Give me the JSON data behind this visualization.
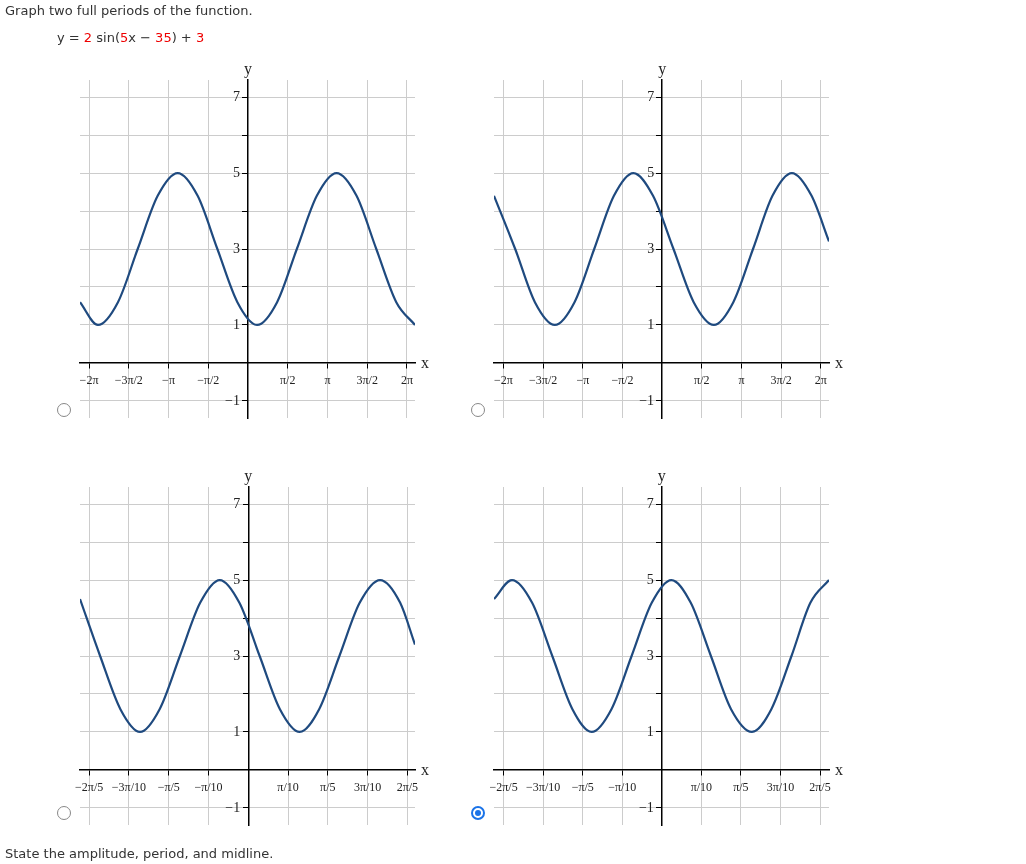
{
  "chart_data": [
    {
      "type": "line",
      "title": "Graph two full periods of the function.",
      "subtitle": "y = 2 sin(5x − 35) + 3",
      "xlabel": "x",
      "ylabel": "y",
      "grid": true,
      "x": [
        -6.64,
        -5.93,
        -5.14,
        -4.36,
        -3.57,
        -2.78,
        -1.99,
        -1.21,
        -0.42,
        0.36,
        1.15,
        1.93,
        2.72,
        3.5,
        4.29,
        5.07,
        5.86,
        6.6
      ],
      "series": [
        {
          "color": "#1f4a7f",
          "values": [
            1.6,
            1,
            1.6,
            3,
            4.4,
            5,
            4.4,
            3,
            1.6,
            1,
            1.6,
            3,
            4.4,
            5,
            4.4,
            3,
            1.6,
            1
          ]
        }
      ],
      "xlim": [
        -6.64,
        6.6
      ],
      "ylim": [
        -1.45,
        7.45
      ],
      "xticks": [
        {
          "value": -6.2832,
          "label": "−2π"
        },
        {
          "value": -4.7124,
          "label": "−3π/2"
        },
        {
          "value": -3.1416,
          "label": "−π"
        },
        {
          "value": -1.5708,
          "label": "−π/2"
        },
        {
          "value": 1.5708,
          "label": "π/2"
        },
        {
          "value": 3.1416,
          "label": "π"
        },
        {
          "value": 4.7124,
          "label": "3π/2"
        },
        {
          "value": 6.2832,
          "label": "2π"
        }
      ],
      "yticks": [
        -1,
        {
          "value": 0,
          "label": null
        },
        1,
        {
          "value": 2,
          "label": null
        },
        3,
        {
          "value": 4,
          "label": null
        },
        5,
        {
          "value": 6,
          "label": null
        },
        7
      ]
    },
    {
      "type": "line",
      "xlabel": "x",
      "ylabel": "y",
      "grid": true,
      "x": [
        -6.66,
        -5.82,
        -5.04,
        -4.25,
        -3.47,
        -2.69,
        -1.91,
        -1.14,
        -0.36,
        0.45,
        1.25,
        2.05,
        2.82,
        3.6,
        4.37,
        5.14,
        5.92,
        6.61
      ],
      "series": [
        {
          "color": "#1f4a7f",
          "values": [
            4.4,
            3,
            1.6,
            1,
            1.6,
            3,
            4.4,
            5,
            4.4,
            3,
            1.6,
            1,
            1.6,
            3,
            4.4,
            5,
            4.4,
            3.2
          ]
        }
      ],
      "xlim": [
        -6.66,
        6.61
      ],
      "ylim": [
        -1.45,
        7.45
      ],
      "xticks": [
        {
          "value": -6.2832,
          "label": "−2π"
        },
        {
          "value": -4.7124,
          "label": "−3π/2"
        },
        {
          "value": -3.1416,
          "label": "−π"
        },
        {
          "value": -1.5708,
          "label": "−π/2"
        },
        {
          "value": 1.5708,
          "label": "π/2"
        },
        {
          "value": 3.1416,
          "label": "π"
        },
        {
          "value": 4.7124,
          "label": "3π/2"
        },
        {
          "value": 6.2832,
          "label": "2π"
        }
      ],
      "yticks": [
        -1,
        {
          "value": 0,
          "label": null
        },
        1,
        {
          "value": 2,
          "label": null
        },
        3,
        {
          "value": 4,
          "label": null
        },
        5,
        {
          "value": 6,
          "label": null
        },
        7
      ]
    },
    {
      "type": "line",
      "xlabel": "x",
      "ylabel": "y",
      "grid": true,
      "annotations": [
        "State the amplitude, period, and midline."
      ],
      "x": [
        -1.329,
        -1.17,
        -1.01,
        -0.855,
        -0.7,
        -0.54,
        -0.38,
        -0.225,
        -0.07,
        0.09,
        0.25,
        0.406,
        0.56,
        0.72,
        0.88,
        1.041,
        1.2,
        1.317
      ],
      "series": [
        {
          "color": "#1f4a7f",
          "values": [
            4.5,
            3,
            1.6,
            1,
            1.6,
            3,
            4.4,
            5,
            4.4,
            3,
            1.6,
            1,
            1.6,
            3,
            4.4,
            5,
            4.4,
            3.3
          ]
        }
      ],
      "xlim": [
        -1.329,
        1.317
      ],
      "ylim": [
        -1.45,
        7.45
      ],
      "xticks": [
        {
          "value": -1.2566,
          "label": "−2π/5"
        },
        {
          "value": -0.9425,
          "label": "−3π/10"
        },
        {
          "value": -0.6283,
          "label": "−π/5"
        },
        {
          "value": -0.3142,
          "label": "−π/10"
        },
        {
          "value": 0.3142,
          "label": "π/10"
        },
        {
          "value": 0.6283,
          "label": "π/5"
        },
        {
          "value": 0.9425,
          "label": "3π/10"
        },
        {
          "value": 1.2566,
          "label": "2π/5"
        }
      ],
      "yticks": [
        -1,
        {
          "value": 0,
          "label": null
        },
        1,
        {
          "value": 2,
          "label": null
        },
        3,
        {
          "value": 4,
          "label": null
        },
        5,
        {
          "value": 6,
          "label": null
        },
        7
      ]
    },
    {
      "type": "line",
      "xlabel": "x",
      "ylabel": "y",
      "grid": true,
      "x": [
        -1.333,
        -1.19,
        -1.03,
        -0.87,
        -0.71,
        -0.557,
        -0.4,
        -0.24,
        -0.08,
        0.076,
        0.23,
        0.39,
        0.55,
        0.716,
        0.87,
        1.03,
        1.18,
        1.328
      ],
      "series": [
        {
          "color": "#1f4a7f",
          "values": [
            4.5,
            5,
            4.4,
            3,
            1.6,
            1,
            1.6,
            3,
            4.4,
            5,
            4.4,
            3,
            1.6,
            1,
            1.6,
            3,
            4.4,
            5
          ]
        }
      ],
      "xlim": [
        -1.333,
        1.328
      ],
      "ylim": [
        -1.45,
        7.45
      ],
      "xticks": [
        {
          "value": -1.2566,
          "label": "−2π/5"
        },
        {
          "value": -0.9425,
          "label": "−3π/10"
        },
        {
          "value": -0.6283,
          "label": "−π/5"
        },
        {
          "value": -0.3142,
          "label": "−π/10"
        },
        {
          "value": 0.3142,
          "label": "π/10"
        },
        {
          "value": 0.6283,
          "label": "π/5"
        },
        {
          "value": 0.9425,
          "label": "3π/10"
        },
        {
          "value": 1.2566,
          "label": "2π/5"
        }
      ],
      "yticks": [
        -1,
        {
          "value": 0,
          "label": null
        },
        1,
        {
          "value": 2,
          "label": null
        },
        3,
        {
          "value": 4,
          "label": null
        },
        5,
        {
          "value": 6,
          "label": null
        },
        7
      ]
    }
  ]
}
